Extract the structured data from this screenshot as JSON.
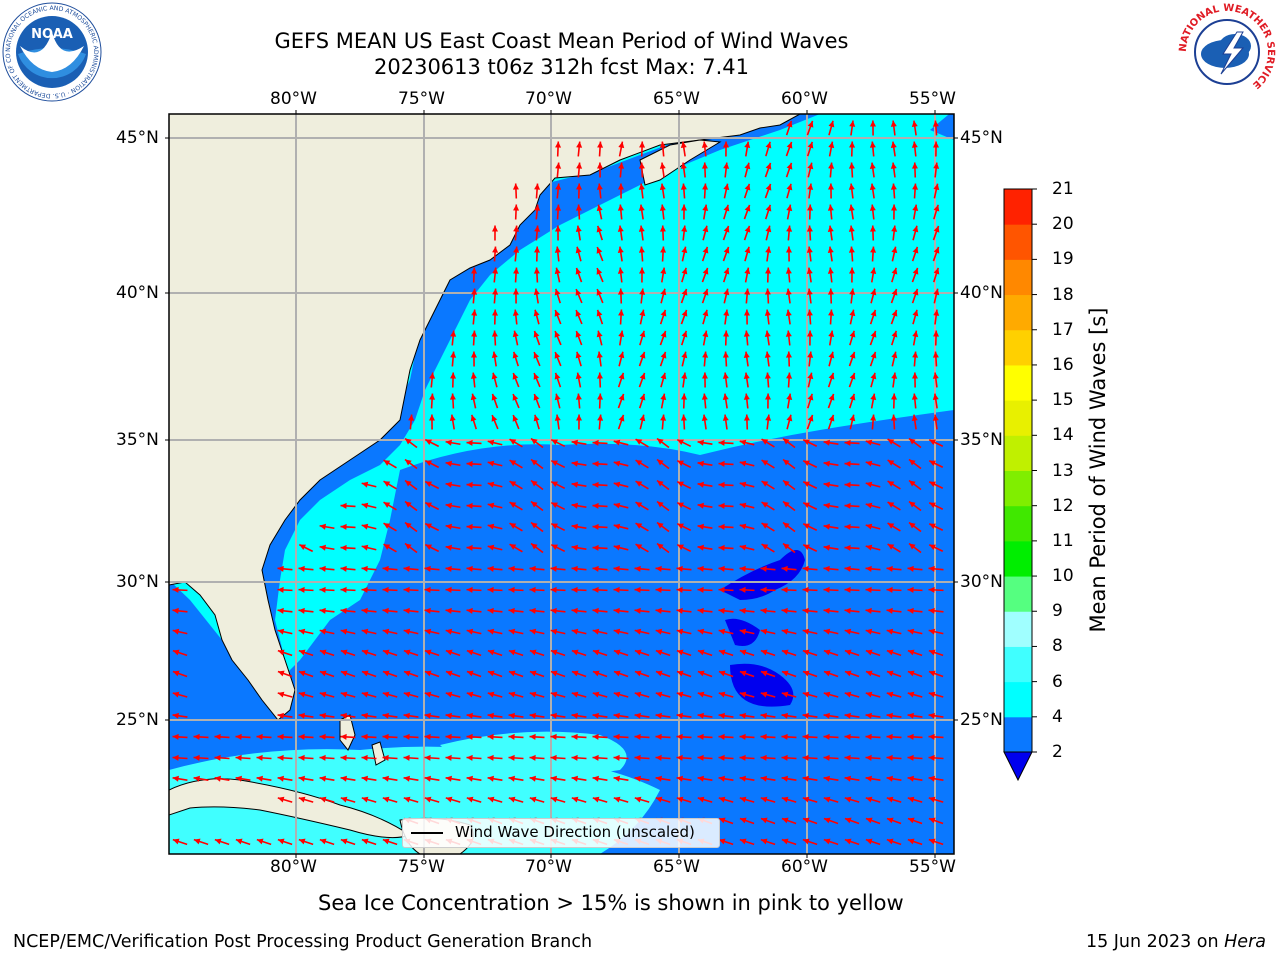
{
  "title": {
    "line1": "GEFS MEAN US East Coast Mean Period of Wind Waves",
    "line2": "20230613 t06z 312h fcst   Max: 7.41"
  },
  "map": {
    "lon_labels": [
      "80°W",
      "75°W",
      "70°W",
      "65°W",
      "60°W",
      "55°W"
    ],
    "lat_labels": [
      "45°N",
      "40°N",
      "35°N",
      "30°N",
      "25°N"
    ],
    "legend_label": "Wind Wave Direction (unscaled)",
    "arrow_color": "#ff0000",
    "land_color": "#efeedd",
    "water_low_color": "#0a78ff",
    "water_high_color": "#00ffff"
  },
  "colorbar": {
    "label": "Mean Period of Wind Waves [s]",
    "ticks": [
      "2",
      "4",
      "6",
      "8",
      "9",
      "10",
      "11",
      "12",
      "13",
      "14",
      "15",
      "16",
      "17",
      "18",
      "19",
      "20",
      "21"
    ],
    "colors": [
      "#0a78ff",
      "#00ffff",
      "#40ffff",
      "#a0ffff",
      "#55ff80",
      "#00ee00",
      "#40e800",
      "#80ee00",
      "#c0f000",
      "#e8f000",
      "#ffff00",
      "#ffd000",
      "#ffaa00",
      "#ff8800",
      "#ff5500",
      "#ff2200"
    ],
    "extend_color": "#0000ee"
  },
  "note": "Sea Ice Concentration > 15% is shown in pink to yellow",
  "footer": {
    "left": "NCEP/EMC/Verification Post Processing Product Generation Branch",
    "right_date": "15 Jun 2023 on ",
    "right_host": "Hera"
  },
  "logos": {
    "noaa_text": "NOAA",
    "noaa_ring": "NATIONAL OCEANIC AND ATMOSPHERIC ADMINISTRATION · U.S. DEPARTMENT OF COMMERCE",
    "nws_ring": "NATIONAL WEATHER SERVICE"
  }
}
